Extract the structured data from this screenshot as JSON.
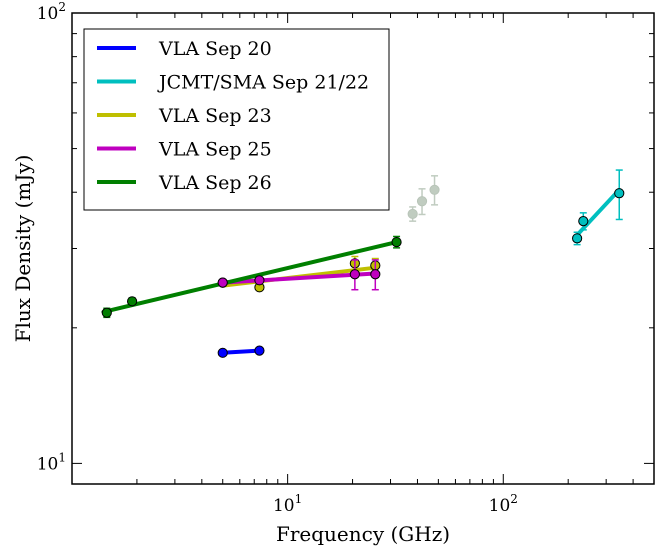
{
  "chart_data": {
    "type": "scatter",
    "xlabel": "Frequency (GHz)",
    "ylabel": "Flux Density (mJy)",
    "xscale": "log",
    "yscale": "log",
    "xlim": [
      1.0,
      500
    ],
    "ylim": [
      9.0,
      100
    ],
    "x_ticks": [
      {
        "value": 10,
        "label": "10",
        "sup": "1"
      },
      {
        "value": 100,
        "label": "10",
        "sup": "2"
      }
    ],
    "y_ticks": [
      {
        "value": 10,
        "label": "10",
        "sup": "1"
      },
      {
        "value": 100,
        "label": "10",
        "sup": "2"
      }
    ],
    "legend_position": "top-left",
    "series": [
      {
        "name": "VLA Sep 20",
        "color": "#0000ff",
        "fit": [
          [
            5.0,
            17.6
          ],
          [
            7.4,
            17.8
          ]
        ],
        "points": [
          {
            "x": 5.0,
            "y": 17.6,
            "err": 0.2
          },
          {
            "x": 7.4,
            "y": 17.8,
            "err": 0.2
          }
        ]
      },
      {
        "name": "JCMT/SMA Sep 21/22",
        "color": "#00bfbf",
        "fit": [
          [
            225,
            32.5
          ],
          [
            345,
            40.5
          ]
        ],
        "points": [
          {
            "x": 220,
            "y": 31.6,
            "err": 1.0
          },
          {
            "x": 235,
            "y": 34.5,
            "err": 1.5
          },
          {
            "x": 345,
            "y": 39.8,
            "err": 5.0
          }
        ]
      },
      {
        "name": "VLA Sep 23",
        "color": "#bfbf00",
        "fit": [
          [
            5.0,
            24.8
          ],
          [
            25.5,
            27.2
          ]
        ],
        "points": [
          {
            "x": 5.0,
            "y": 25.2,
            "err": 0.3
          },
          {
            "x": 7.4,
            "y": 24.6,
            "err": 0.4
          },
          {
            "x": 20.5,
            "y": 27.8,
            "err": 1.0
          },
          {
            "x": 25.5,
            "y": 27.5,
            "err": 1.0
          }
        ]
      },
      {
        "name": "VLA Sep 25",
        "color": "#bf00bf",
        "fit": [
          [
            5.0,
            25.2
          ],
          [
            25.5,
            26.4
          ]
        ],
        "points": [
          {
            "x": 5.0,
            "y": 25.2,
            "err": 0.3
          },
          {
            "x": 7.4,
            "y": 25.5,
            "err": 0.3
          },
          {
            "x": 20.5,
            "y": 26.3,
            "err": 2.0
          },
          {
            "x": 25.5,
            "y": 26.3,
            "err": 2.0
          }
        ]
      },
      {
        "name": "VLA Sep 26",
        "color": "#007f00",
        "fit": [
          [
            1.4,
            21.7
          ],
          [
            32,
            31.0
          ]
        ],
        "points": [
          {
            "x": 1.45,
            "y": 21.6,
            "err": 0.5
          },
          {
            "x": 1.9,
            "y": 22.9,
            "err": 0.4
          },
          {
            "x": 32,
            "y": 31.0,
            "err": 0.9
          }
        ]
      }
    ],
    "extra_points": [
      {
        "color": "#c0ccc0",
        "x": 38,
        "y": 35.8,
        "err": 1.3
      },
      {
        "color": "#c0ccc0",
        "x": 42,
        "y": 38.2,
        "err": 2.5
      },
      {
        "color": "#c0ccc0",
        "x": 48,
        "y": 40.5,
        "err": 3.0
      }
    ]
  }
}
